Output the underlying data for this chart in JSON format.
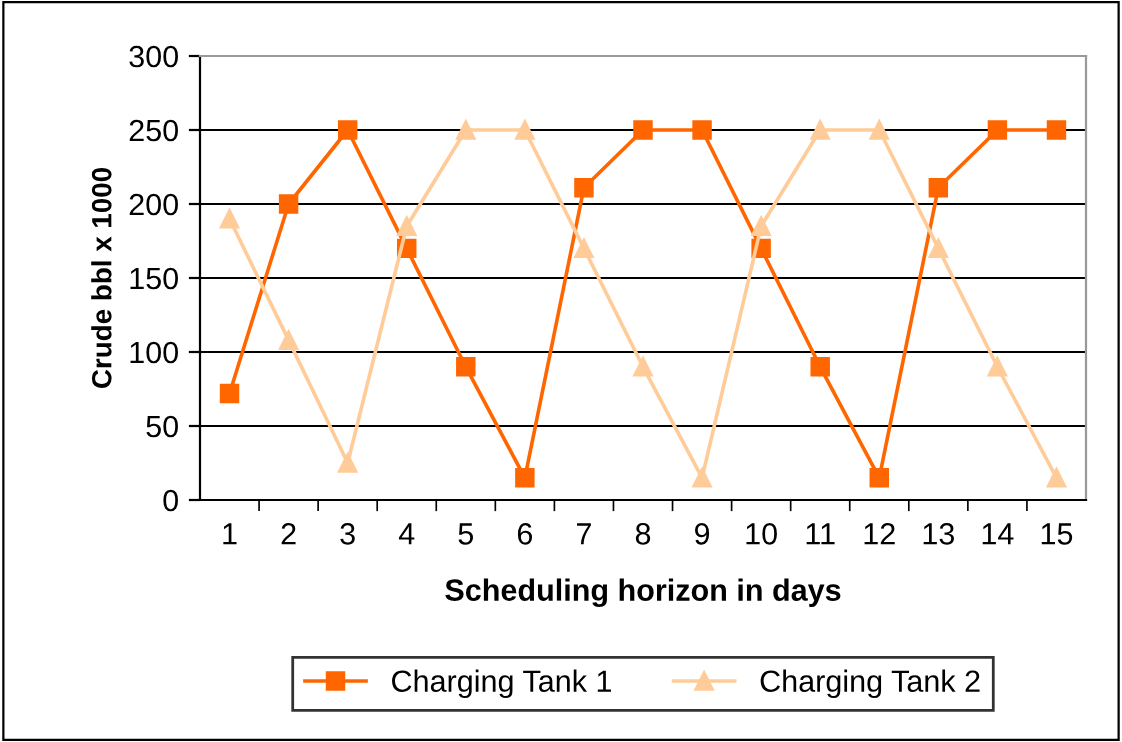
{
  "chart_data": {
    "type": "line",
    "xlabel": "Scheduling horizon in days",
    "ylabel": "Crude bbl x 1000",
    "categories": [
      "1",
      "2",
      "3",
      "4",
      "5",
      "6",
      "7",
      "8",
      "9",
      "10",
      "11",
      "12",
      "13",
      "14",
      "15"
    ],
    "series": [
      {
        "name": "Charging Tank 1",
        "color": "#ff6600",
        "marker": "square",
        "values": [
          72,
          200,
          250,
          170,
          90,
          15,
          211,
          250,
          250,
          170,
          90,
          15,
          211,
          250,
          250
        ]
      },
      {
        "name": "Charging Tank 2",
        "color": "#ffcc99",
        "marker": "triangle",
        "values": [
          190,
          108,
          25,
          185,
          250,
          250,
          170,
          90,
          15,
          185,
          250,
          250,
          170,
          90,
          15
        ]
      }
    ],
    "ylim": [
      0,
      300
    ],
    "yticks": [
      0,
      50,
      100,
      150,
      200,
      250,
      300
    ],
    "grid": "y",
    "legend": "bottom"
  }
}
